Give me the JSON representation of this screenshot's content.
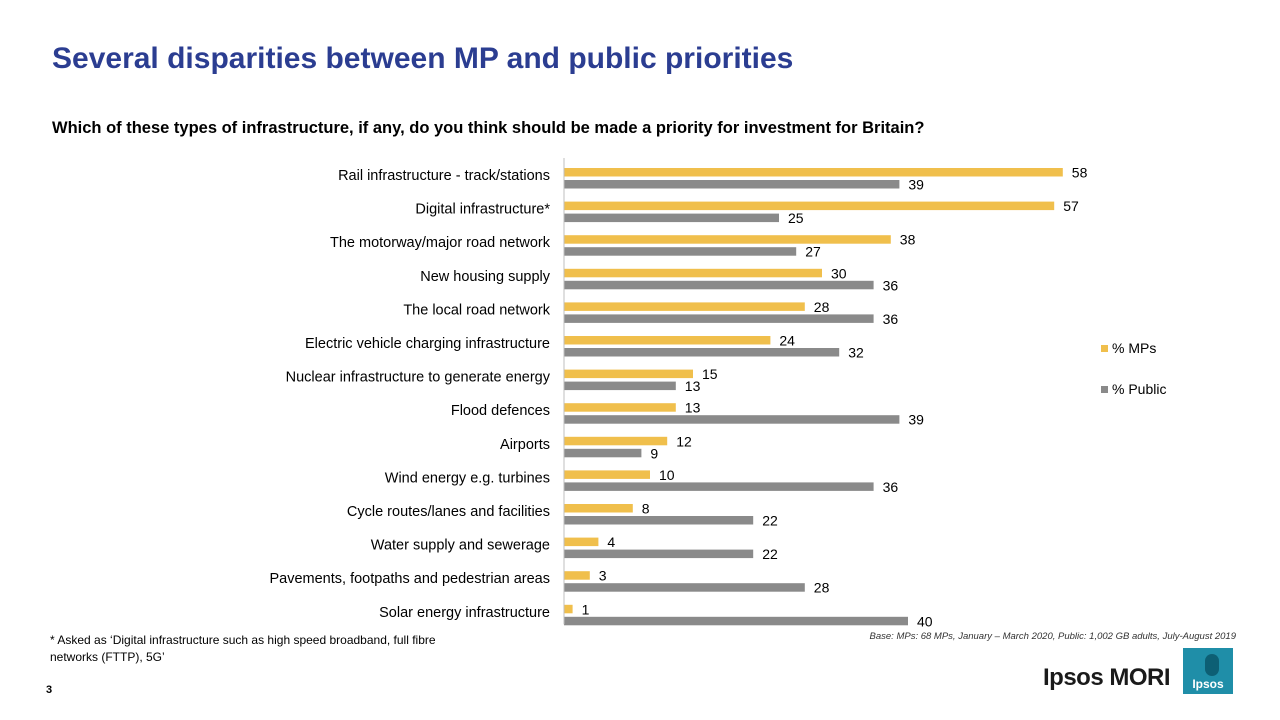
{
  "page": {
    "title": "Several disparities between MP and public priorities",
    "subtitle": "Which of these types of infrastructure, if any, do you think should be made a priority for investment for Britain?",
    "footnote": "* Asked as  ‘Digital infrastructure such as high speed broadband, full fibre networks (FTTP), 5G’",
    "base": "Base: MPs: 68 MPs, January – March 2020, Public: 1,002 GB adults, July-August 2019",
    "page_number": "3",
    "brand": "Ipsos MORI",
    "logo_text": "Ipsos"
  },
  "colors": {
    "mps": "#f0bf4c",
    "public": "#8a8a8a"
  },
  "chart_data": {
    "type": "bar",
    "orientation": "horizontal",
    "title": "Which of these types of infrastructure, if any, do you think should be made a priority for investment for Britain?",
    "xlabel": "",
    "ylabel": "",
    "xlim": [
      0,
      60
    ],
    "grid": false,
    "legend_position": "right",
    "categories": [
      "Rail infrastructure - track/stations",
      "Digital infrastructure*",
      "The motorway/major road network",
      "New housing supply",
      "The local road network",
      "Electric vehicle charging infrastructure",
      "Nuclear infrastructure to generate energy",
      "Flood defences",
      "Airports",
      "Wind energy e.g. turbines",
      "Cycle routes/lanes and facilities",
      "Water supply and sewerage",
      "Pavements, footpaths and pedestrian areas",
      "Solar energy infrastructure"
    ],
    "series": [
      {
        "name": "% MPs",
        "values": [
          58,
          57,
          38,
          30,
          28,
          24,
          15,
          13,
          12,
          10,
          8,
          4,
          3,
          1
        ]
      },
      {
        "name": "% Public",
        "values": [
          39,
          25,
          27,
          36,
          36,
          32,
          13,
          39,
          9,
          36,
          22,
          22,
          28,
          40
        ]
      }
    ]
  }
}
